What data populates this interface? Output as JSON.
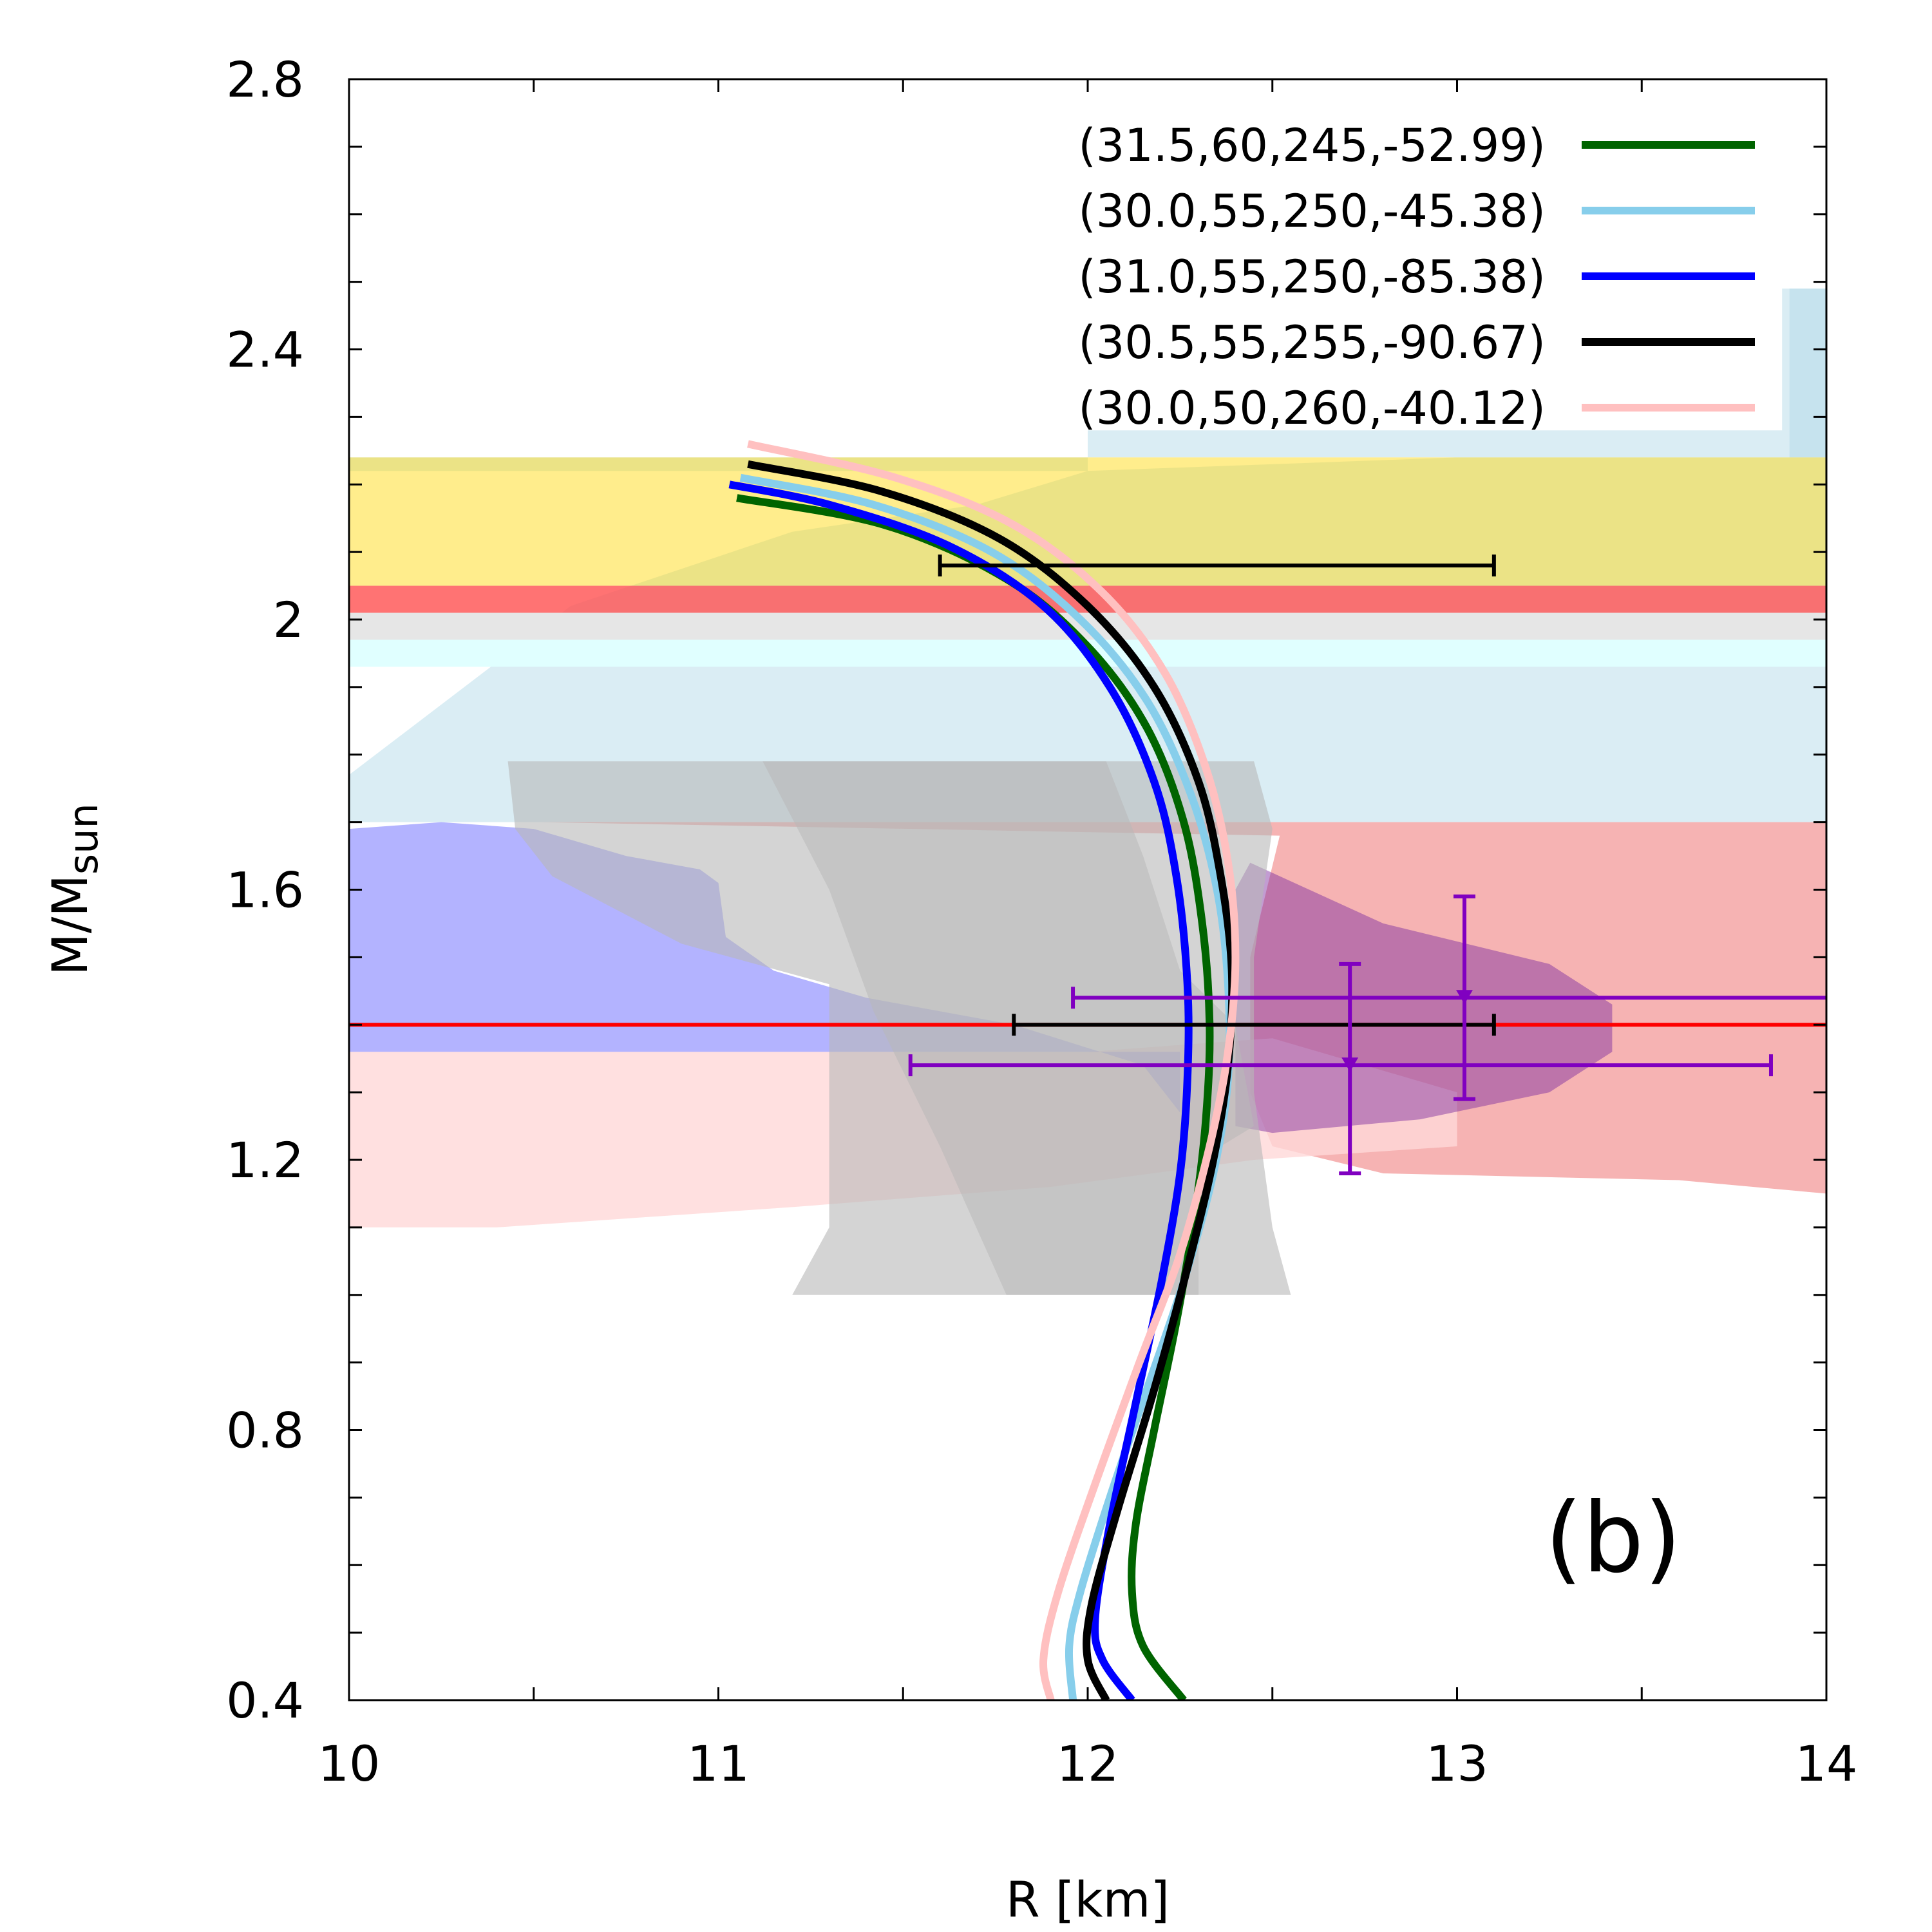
{
  "chart_data": {
    "type": "line",
    "xlabel": "R [km]",
    "ylabel": "M/M",
    "ylabel_subscript": "sun",
    "xlim": [
      10,
      14
    ],
    "ylim": [
      0.4,
      2.8
    ],
    "x_ticks": [
      "10",
      "11",
      "12",
      "13",
      "14"
    ],
    "y_ticks": [
      "0.4",
      "0.8",
      "1.2",
      "1.6",
      "2",
      "2.4",
      "2.8"
    ],
    "panel_label": "(b)",
    "legend_position": "top-right",
    "series": [
      {
        "name": "(31.5,60,245,-52.99)",
        "color": "#006400",
        "points": [
          [
            12.26,
            0.4
          ],
          [
            12.15,
            0.48
          ],
          [
            12.12,
            0.56
          ],
          [
            12.13,
            0.66
          ],
          [
            12.18,
            0.8
          ],
          [
            12.24,
            0.96
          ],
          [
            12.29,
            1.12
          ],
          [
            12.32,
            1.26
          ],
          [
            12.33,
            1.4
          ],
          [
            12.31,
            1.55
          ],
          [
            12.26,
            1.7
          ],
          [
            12.16,
            1.84
          ],
          [
            12.0,
            1.96
          ],
          [
            11.78,
            2.06
          ],
          [
            11.45,
            2.14
          ],
          [
            11.05,
            2.18
          ]
        ]
      },
      {
        "name": "(30.0,55,250,-45.38)",
        "color": "#87ceeb",
        "points": [
          [
            11.96,
            0.4
          ],
          [
            11.95,
            0.48
          ],
          [
            11.98,
            0.56
          ],
          [
            12.06,
            0.7
          ],
          [
            12.16,
            0.86
          ],
          [
            12.26,
            1.02
          ],
          [
            12.34,
            1.18
          ],
          [
            12.38,
            1.32
          ],
          [
            12.38,
            1.46
          ],
          [
            12.35,
            1.6
          ],
          [
            12.28,
            1.74
          ],
          [
            12.16,
            1.88
          ],
          [
            11.98,
            2.0
          ],
          [
            11.74,
            2.1
          ],
          [
            11.42,
            2.17
          ],
          [
            11.06,
            2.21
          ]
        ]
      },
      {
        "name": "(31.0,55,250,-85.38)",
        "color": "#0000ff",
        "points": [
          [
            12.12,
            0.4
          ],
          [
            12.04,
            0.46
          ],
          [
            12.02,
            0.52
          ],
          [
            12.06,
            0.66
          ],
          [
            12.13,
            0.84
          ],
          [
            12.2,
            1.02
          ],
          [
            12.25,
            1.18
          ],
          [
            12.27,
            1.32
          ],
          [
            12.27,
            1.46
          ],
          [
            12.24,
            1.62
          ],
          [
            12.18,
            1.76
          ],
          [
            12.06,
            1.9
          ],
          [
            11.88,
            2.02
          ],
          [
            11.62,
            2.11
          ],
          [
            11.3,
            2.17
          ],
          [
            11.03,
            2.2
          ]
        ]
      },
      {
        "name": "(30.5,55,255,-90.67)",
        "color": "#000000",
        "points": [
          [
            12.05,
            0.4
          ],
          [
            12.0,
            0.46
          ],
          [
            12.01,
            0.54
          ],
          [
            12.08,
            0.68
          ],
          [
            12.18,
            0.86
          ],
          [
            12.27,
            1.04
          ],
          [
            12.34,
            1.2
          ],
          [
            12.38,
            1.34
          ],
          [
            12.39,
            1.48
          ],
          [
            12.36,
            1.62
          ],
          [
            12.3,
            1.76
          ],
          [
            12.18,
            1.9
          ],
          [
            12.0,
            2.02
          ],
          [
            11.76,
            2.12
          ],
          [
            11.44,
            2.19
          ],
          [
            11.08,
            2.23
          ]
        ]
      },
      {
        "name": "(30.0,50,260,-40.12)",
        "color": "#ffc0c0",
        "points": [
          [
            11.9,
            0.4
          ],
          [
            11.88,
            0.46
          ],
          [
            11.92,
            0.56
          ],
          [
            12.02,
            0.72
          ],
          [
            12.14,
            0.9
          ],
          [
            12.25,
            1.06
          ],
          [
            12.33,
            1.22
          ],
          [
            12.38,
            1.36
          ],
          [
            12.4,
            1.5
          ],
          [
            12.38,
            1.64
          ],
          [
            12.32,
            1.78
          ],
          [
            12.21,
            1.92
          ],
          [
            12.04,
            2.04
          ],
          [
            11.8,
            2.14
          ],
          [
            11.48,
            2.21
          ],
          [
            11.08,
            2.26
          ]
        ]
      }
    ],
    "error_bars": [
      {
        "x": 12.35,
        "y": 2.08,
        "xerr": [
          11.6,
          13.1
        ],
        "color": "#000000"
      },
      {
        "x": 12.45,
        "y": 1.4,
        "xerr": [
          11.8,
          13.1
        ],
        "color": "#000000"
      },
      {
        "x": 13.02,
        "y": 1.44,
        "xerr": [
          11.96,
          14.0
        ],
        "yerr": [
          1.29,
          1.59
        ],
        "color": "#8000c0"
      },
      {
        "x": 12.71,
        "y": 1.34,
        "xerr": [
          11.52,
          13.85
        ],
        "yerr": [
          1.18,
          1.49
        ],
        "color": "#8000c0"
      }
    ],
    "reference_line": {
      "y": 1.4,
      "color": "#ff0000"
    },
    "bands": [
      {
        "y": [
          1.93,
          1.98
        ],
        "color": "#e0ffff",
        "opacity": 1
      },
      {
        "y": [
          1.97,
          2.01
        ],
        "color": "#e6e6e6",
        "opacity": 1
      },
      {
        "y": [
          2.05,
          2.24
        ],
        "color": "#ffd700",
        "opacity": 0.45
      },
      {
        "y": [
          2.01,
          2.05
        ],
        "color": "#ff5050",
        "opacity": 0.8
      }
    ],
    "regions": [
      {
        "color": "#add8e6",
        "opacity": 0.45,
        "points": [
          [
            10.0,
            1.7
          ],
          [
            10.0,
            1.77
          ],
          [
            10.6,
            2.02
          ],
          [
            11.2,
            2.13
          ],
          [
            11.7,
            2.17
          ],
          [
            12.0,
            2.22
          ],
          [
            13.0,
            2.24
          ],
          [
            13.9,
            2.24
          ],
          [
            14.0,
            2.24
          ],
          [
            14.0,
            1.7
          ]
        ]
      },
      {
        "color": "#add8e6",
        "opacity": 0.45,
        "points": [
          [
            12.0,
            2.22
          ],
          [
            10.0,
            2.22
          ],
          [
            10.0,
            2.24
          ],
          [
            12.0,
            2.24
          ]
        ]
      },
      {
        "color": "#add8e6",
        "opacity": 0.45,
        "points": [
          [
            12.0,
            2.24
          ],
          [
            13.9,
            2.24
          ],
          [
            13.9,
            2.49
          ],
          [
            14.0,
            2.49
          ],
          [
            14.0,
            2.24
          ]
        ]
      },
      {
        "color": "#add8e6",
        "opacity": 0.45,
        "points": [
          [
            11.92,
            2.24
          ],
          [
            12.0,
            2.24
          ],
          [
            12.0,
            2.28
          ],
          [
            13.88,
            2.28
          ],
          [
            13.88,
            2.49
          ],
          [
            14.0,
            2.49
          ],
          [
            14.0,
            2.28
          ],
          [
            14.0,
            2.24
          ],
          [
            13.0,
            2.24
          ]
        ]
      },
      {
        "color": "#f4a0a0",
        "opacity": 0.8,
        "points": [
          [
            10.52,
            1.7
          ],
          [
            14.0,
            1.7
          ],
          [
            14.0,
            1.15
          ],
          [
            13.6,
            1.17
          ],
          [
            12.8,
            1.18
          ],
          [
            12.5,
            1.22
          ],
          [
            12.44,
            1.3
          ],
          [
            12.44,
            1.5
          ],
          [
            12.52,
            1.68
          ]
        ]
      },
      {
        "color": "#ffd8d8",
        "opacity": 0.8,
        "points": [
          [
            10.0,
            1.36
          ],
          [
            12.0,
            1.36
          ],
          [
            12.5,
            1.38
          ],
          [
            13.0,
            1.3
          ],
          [
            13.0,
            1.22
          ],
          [
            12.45,
            1.2
          ],
          [
            11.9,
            1.16
          ],
          [
            11.2,
            1.13
          ],
          [
            10.4,
            1.1
          ],
          [
            10.0,
            1.1
          ]
        ]
      },
      {
        "color": "#6060ff",
        "opacity": 0.48,
        "points": [
          [
            10.0,
            1.69
          ],
          [
            10.25,
            1.7
          ],
          [
            10.5,
            1.69
          ],
          [
            10.75,
            1.65
          ],
          [
            10.95,
            1.63
          ],
          [
            11.0,
            1.61
          ],
          [
            11.02,
            1.53
          ],
          [
            11.15,
            1.48
          ],
          [
            11.4,
            1.44
          ],
          [
            11.8,
            1.4
          ],
          [
            12.15,
            1.34
          ],
          [
            12.25,
            1.27
          ],
          [
            12.25,
            1.36
          ],
          [
            10.0,
            1.36
          ]
        ]
      },
      {
        "color": "#8030a0",
        "opacity": 0.48,
        "points": [
          [
            12.44,
            1.64
          ],
          [
            12.8,
            1.55
          ],
          [
            13.25,
            1.49
          ],
          [
            13.42,
            1.43
          ],
          [
            13.42,
            1.36
          ],
          [
            13.25,
            1.3
          ],
          [
            12.9,
            1.26
          ],
          [
            12.5,
            1.24
          ],
          [
            12.4,
            1.25
          ],
          [
            12.4,
            1.6
          ]
        ]
      },
      {
        "color": "#b8b8b8",
        "opacity": 0.6,
        "points": [
          [
            10.43,
            1.79
          ],
          [
            10.45,
            1.69
          ],
          [
            10.55,
            1.62
          ],
          [
            10.9,
            1.52
          ],
          [
            11.3,
            1.46
          ],
          [
            11.3,
            1.1
          ],
          [
            11.2,
            1.0
          ],
          [
            12.55,
            1.0
          ],
          [
            12.5,
            1.1
          ],
          [
            12.45,
            1.3
          ],
          [
            12.45,
            1.5
          ],
          [
            12.5,
            1.69
          ],
          [
            12.45,
            1.79
          ]
        ]
      },
      {
        "color": "#b8b8b8",
        "opacity": 0.55,
        "points": [
          [
            11.12,
            1.79
          ],
          [
            12.05,
            1.79
          ],
          [
            12.15,
            1.65
          ],
          [
            12.25,
            1.48
          ],
          [
            12.4,
            1.4
          ],
          [
            12.45,
            1.25
          ],
          [
            12.3,
            1.2
          ],
          [
            12.3,
            1.0
          ],
          [
            11.78,
            1.0
          ],
          [
            11.6,
            1.22
          ],
          [
            11.42,
            1.42
          ],
          [
            11.3,
            1.6
          ]
        ]
      }
    ]
  }
}
